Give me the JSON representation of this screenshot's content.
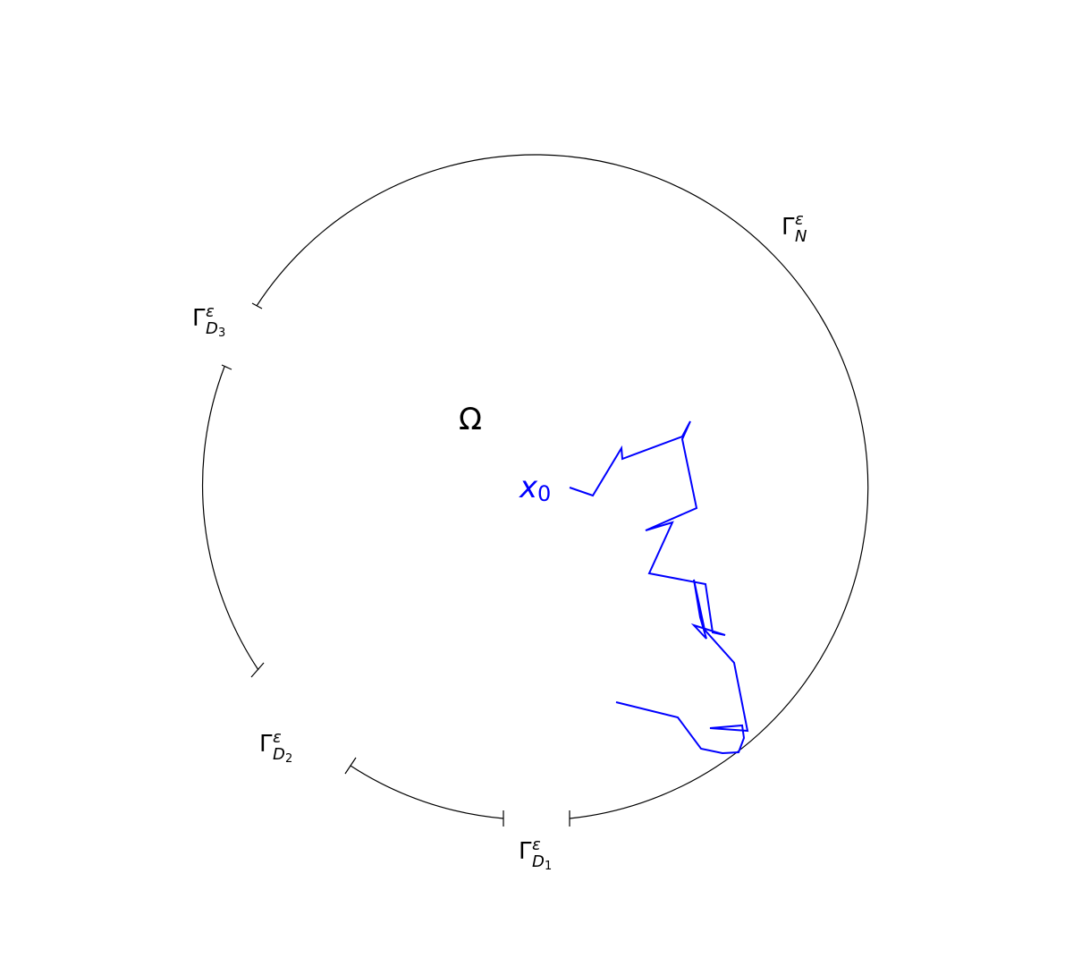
{
  "domain_label": {
    "symbol": "Ω"
  },
  "start_point": {
    "symbol": "x",
    "subscript": "0"
  },
  "boundary_labels": [
    {
      "id": "neumann",
      "base": "Γ",
      "superscript": "ε",
      "subscript": "N",
      "subsubscript": ""
    },
    {
      "id": "dirichlet-3",
      "base": "Γ",
      "superscript": "ε",
      "subscript": "D",
      "subsubscript": "3"
    },
    {
      "id": "dirichlet-2",
      "base": "Γ",
      "superscript": "ε",
      "subscript": "D",
      "subsubscript": "2"
    },
    {
      "id": "dirichlet-1",
      "base": "Γ",
      "superscript": "ε",
      "subscript": "D",
      "subsubscript": "1"
    }
  ],
  "colors": {
    "boundary": "#000000",
    "path": "#0000ff",
    "text": "#000000",
    "start_label": "#0000ff"
  }
}
